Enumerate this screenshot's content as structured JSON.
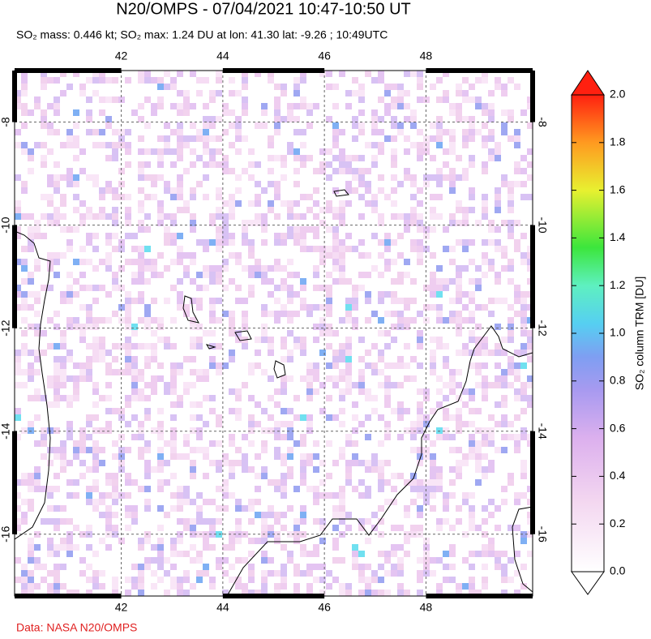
{
  "header": {
    "title": "N20/OMPS - 07/04/2021 10:47-10:50 UT",
    "subtitle": "SO₂ mass: 0.446 kt; SO₂ max: 1.24 DU at lon: 41.30 lat: -9.26 ; 10:49UTC"
  },
  "map": {
    "lonlim": [
      39.9,
      50.1
    ],
    "latlim": [
      -7.0,
      -17.2
    ],
    "lonticks": [
      42,
      44,
      46,
      48
    ],
    "latticks": [
      -8,
      -10,
      -12,
      -14,
      -16
    ]
  },
  "colorbar": {
    "label": "SO₂ column TRM [DU]",
    "lim": [
      0,
      2
    ],
    "ticks": [
      {
        "value": 0,
        "label": "0.0"
      },
      0.2,
      0.4,
      0.6,
      0.8,
      {
        "value": 1,
        "label": "1.0"
      },
      1.2,
      1.4,
      1.6,
      1.8,
      {
        "value": 2,
        "label": "2.0"
      }
    ]
  },
  "footer": {
    "source": "Data: NASA N20/OMPS"
  }
}
